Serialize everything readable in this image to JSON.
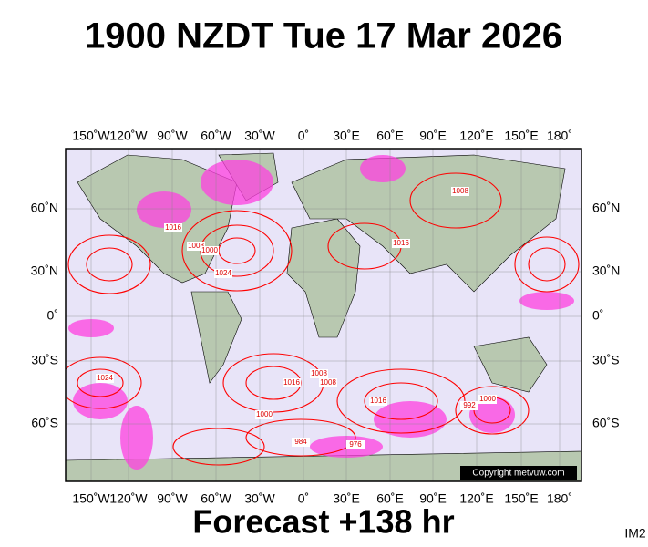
{
  "header": {
    "title": "1900 NZDT Tue 17 Mar 2026"
  },
  "map": {
    "longitude_labels": [
      "150˚W",
      "120˚W",
      "90˚W",
      "60˚W",
      "30˚W",
      "0˚",
      "30˚E",
      "60˚E",
      "90˚E",
      "120˚E",
      "150˚E",
      "180˚"
    ],
    "latitude_labels": [
      "60˚N",
      "30˚N",
      "0˚",
      "30˚S",
      "60˚S"
    ],
    "isobar_labels": [
      "1008",
      "1016",
      "1024",
      "1000",
      "1016",
      "1008",
      "1024",
      "1000",
      "992",
      "1016",
      "1008",
      "1000",
      "984",
      "976",
      "1016",
      "1008"
    ],
    "copyright": "Copyright metvuw.com"
  },
  "footer": {
    "forecast": "Forecast +138 hr",
    "code": "IM2"
  }
}
